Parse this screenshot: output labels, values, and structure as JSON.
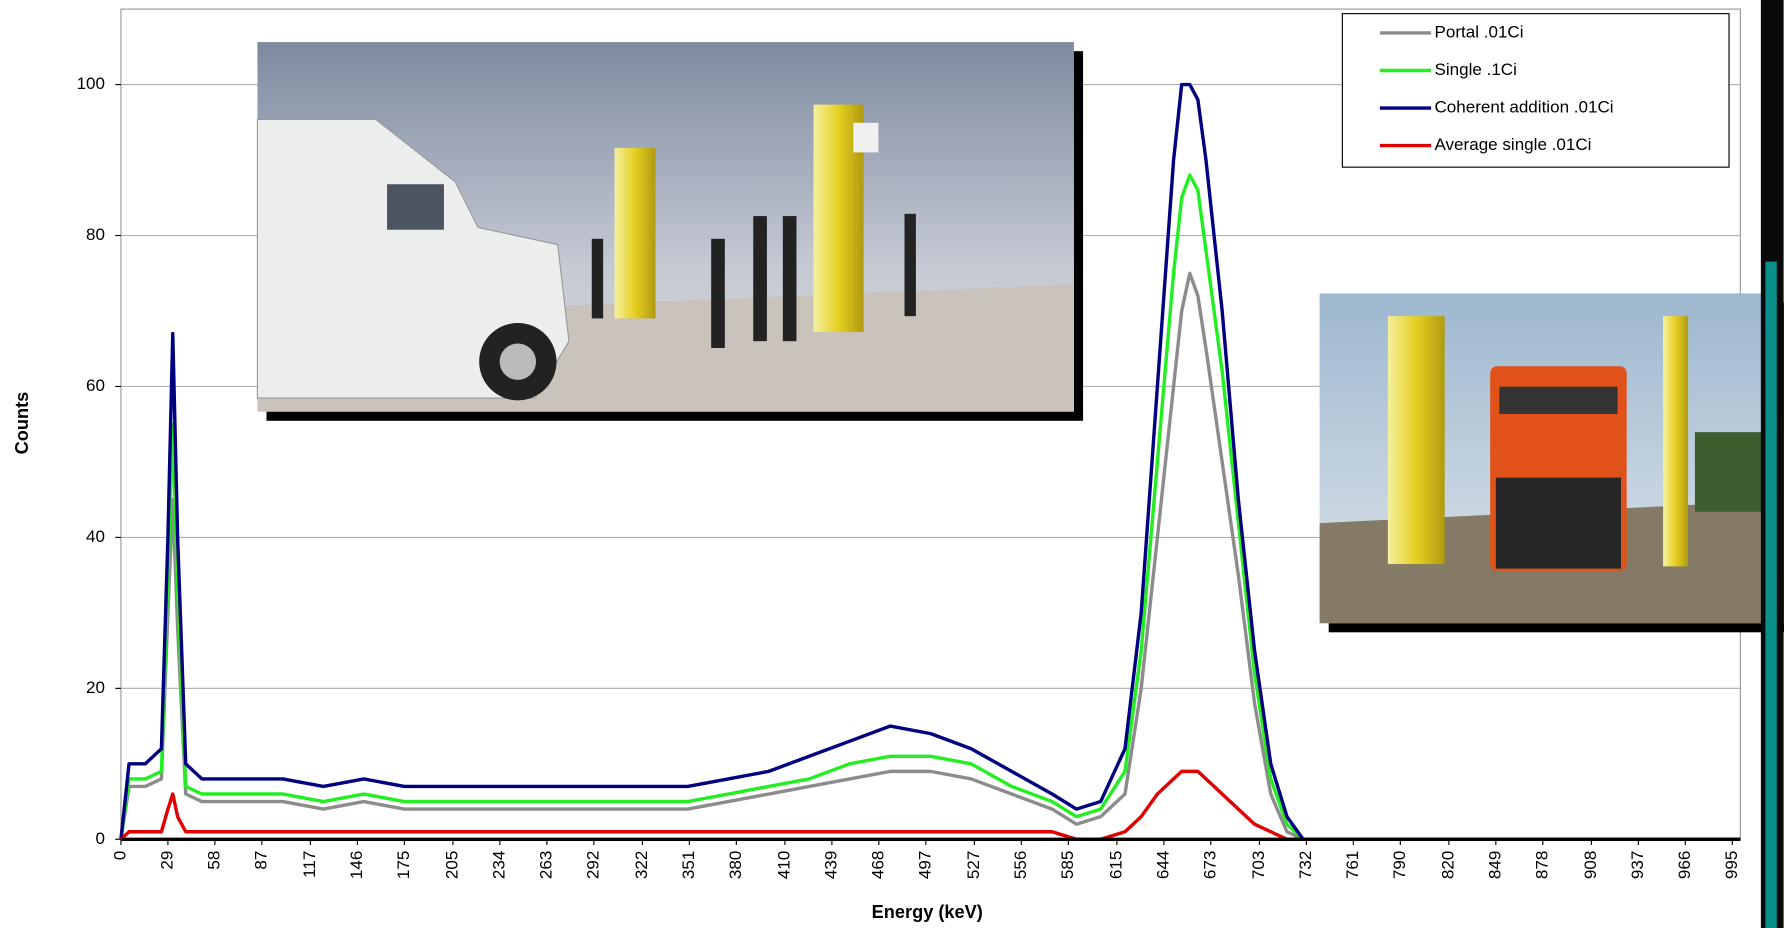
{
  "chart_data": {
    "type": "line",
    "xlabel": "Energy (keV)",
    "ylabel": "Counts",
    "x": [
      0,
      5,
      15,
      25,
      29,
      32,
      35,
      40,
      50,
      75,
      100,
      125,
      150,
      175,
      200,
      225,
      250,
      275,
      300,
      325,
      350,
      375,
      400,
      425,
      450,
      475,
      500,
      525,
      550,
      575,
      590,
      605,
      620,
      630,
      640,
      650,
      655,
      660,
      665,
      670,
      680,
      690,
      700,
      710,
      720,
      730,
      740,
      800,
      900,
      1000
    ],
    "series": [
      {
        "name": "Portal .01Ci",
        "color": "#8c8c8c",
        "values": [
          0,
          7,
          7,
          8,
          30,
          45,
          28,
          6,
          5,
          5,
          5,
          4,
          5,
          4,
          4,
          4,
          4,
          4,
          4,
          4,
          4,
          5,
          6,
          7,
          8,
          9,
          9,
          8,
          6,
          4,
          2,
          3,
          6,
          20,
          40,
          60,
          70,
          75,
          72,
          65,
          50,
          35,
          18,
          6,
          1,
          0,
          0,
          0,
          0,
          0
        ]
      },
      {
        "name": "Single .1Ci",
        "color": "#22ee22",
        "values": [
          0,
          8,
          8,
          9,
          35,
          55,
          33,
          7,
          6,
          6,
          6,
          5,
          6,
          5,
          5,
          5,
          5,
          5,
          5,
          5,
          5,
          6,
          7,
          8,
          10,
          11,
          11,
          10,
          7,
          5,
          3,
          4,
          9,
          25,
          50,
          75,
          85,
          88,
          86,
          78,
          62,
          42,
          22,
          8,
          2,
          0,
          0,
          0,
          0,
          0
        ]
      },
      {
        "name": "Coherent addition .01Ci",
        "color": "#000080",
        "values": [
          0,
          10,
          10,
          12,
          40,
          67,
          40,
          10,
          8,
          8,
          8,
          7,
          8,
          7,
          7,
          7,
          7,
          7,
          7,
          7,
          7,
          8,
          9,
          11,
          13,
          15,
          14,
          12,
          9,
          6,
          4,
          5,
          12,
          30,
          60,
          90,
          100,
          100,
          98,
          90,
          70,
          45,
          25,
          10,
          3,
          0,
          0,
          0,
          0,
          0
        ]
      },
      {
        "name": "Average single .01Ci",
        "color": "#e00000",
        "values": [
          0,
          1,
          1,
          1,
          4,
          6,
          3,
          1,
          1,
          1,
          1,
          1,
          1,
          1,
          1,
          1,
          1,
          1,
          1,
          1,
          1,
          1,
          1,
          1,
          1,
          1,
          1,
          1,
          1,
          1,
          0,
          0,
          1,
          3,
          6,
          8,
          9,
          9,
          9,
          8,
          6,
          4,
          2,
          1,
          0,
          0,
          0,
          0,
          0,
          0
        ]
      }
    ],
    "xlim": [
      0,
      1000
    ],
    "xticks": [
      0,
      29,
      58,
      87,
      117,
      146,
      175,
      205,
      234,
      263,
      292,
      322,
      351,
      380,
      410,
      439,
      468,
      497,
      527,
      556,
      585,
      615,
      644,
      673,
      703,
      732,
      761,
      790,
      820,
      849,
      878,
      908,
      937,
      966,
      995
    ],
    "ylim": [
      0,
      110
    ],
    "yticks": [
      0,
      20,
      40,
      60,
      80,
      100
    ],
    "grid": true,
    "legend": "upper right"
  }
}
